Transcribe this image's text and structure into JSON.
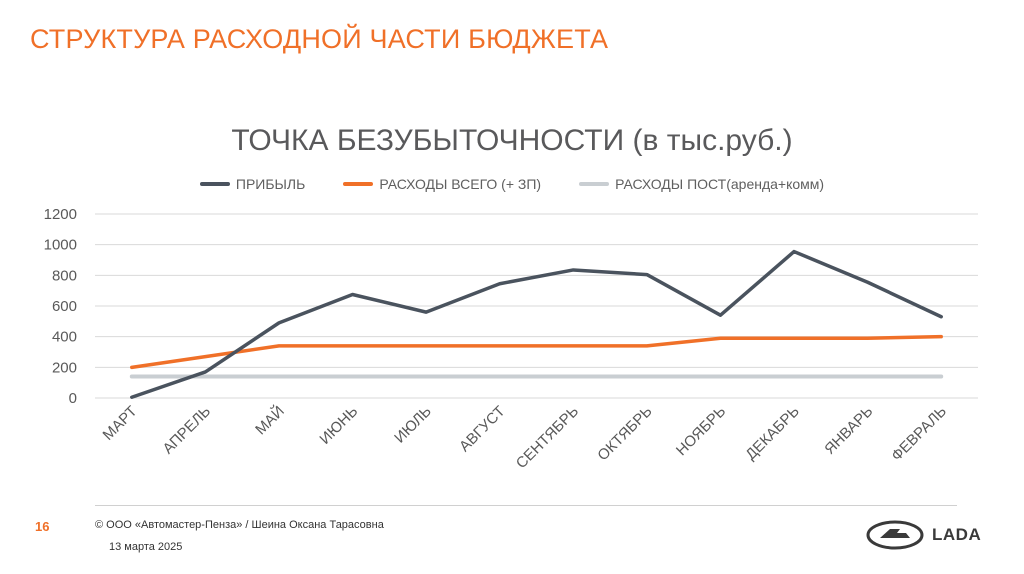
{
  "slide": {
    "title": "СТРУКТУРА РАСХОДНОЙ ЧАСТИ БЮДЖЕТА",
    "page_number": "16",
    "copyright": "© ООО «Автомастер-Пенза» / Шеина Оксана Тарасовна",
    "date": "13 марта 2025",
    "logo_text": "LADA"
  },
  "colors": {
    "title": "#f07028",
    "profit": "#4a535e",
    "expenses_total": "#f07028",
    "expenses_fixed": "#c9ced2",
    "grid": "#d9d9d9"
  },
  "chart_data": {
    "type": "line",
    "title": "ТОЧКА   БЕЗУБЫТОЧНОСТИ (в тыс.руб.)",
    "categories": [
      "МАРТ",
      "АПРЕЛЬ",
      "МАЙ",
      "ИЮНЬ",
      "ИЮЛЬ",
      "АВГУСТ",
      "СЕНТЯБРЬ",
      "ОКТЯБРЬ",
      "НОЯБРЬ",
      "ДЕКАБРЬ",
      "ЯНВАРЬ",
      "ФЕВРАЛЬ"
    ],
    "series": [
      {
        "name": "ПРИБЫЛЬ",
        "color": "#4a535e",
        "values": [
          5,
          170,
          490,
          675,
          560,
          745,
          835,
          805,
          540,
          955,
          755,
          530
        ]
      },
      {
        "name": "РАСХОДЫ ВСЕГО (+ ЗП)",
        "color": "#f07028",
        "values": [
          200,
          270,
          340,
          340,
          340,
          340,
          340,
          340,
          390,
          390,
          390,
          400
        ]
      },
      {
        "name": "РАСХОДЫ ПОСТ(аренда+комм)",
        "color": "#c9ced2",
        "values": [
          140,
          140,
          140,
          140,
          140,
          140,
          140,
          140,
          140,
          140,
          140,
          140
        ]
      }
    ],
    "y_ticks": [
      "0",
      "200",
      "400",
      "600",
      "800",
      "1000",
      "1200"
    ],
    "ylim": [
      0,
      1200
    ],
    "grid": true,
    "legend_position": "top"
  }
}
